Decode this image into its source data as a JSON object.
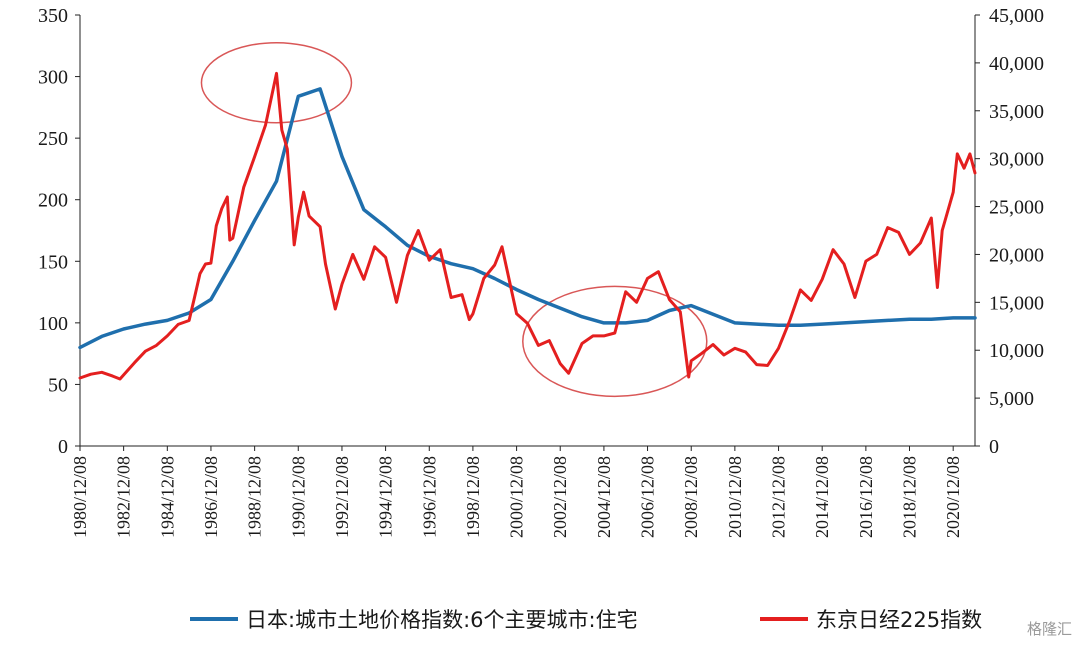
{
  "chart_data": {
    "type": "line",
    "title": "",
    "xlabel": "",
    "ylabel_left": "",
    "ylabel_right": "",
    "grid": false,
    "legend_position": "bottom",
    "xlim": [
      "1980/12/08",
      "2021/12/08"
    ],
    "x_ticks": [
      "1980/12/08",
      "1982/12/08",
      "1984/12/08",
      "1986/12/08",
      "1988/12/08",
      "1990/12/08",
      "1992/12/08",
      "1994/12/08",
      "1996/12/08",
      "1998/12/08",
      "2000/12/08",
      "2002/12/08",
      "2004/12/08",
      "2006/12/08",
      "2008/12/08",
      "2010/12/08",
      "2012/12/08",
      "2014/12/08",
      "2016/12/08",
      "2018/12/08",
      "2020/12/08"
    ],
    "y_left": {
      "min": 0,
      "max": 350,
      "ticks": [
        0,
        50,
        100,
        150,
        200,
        250,
        300,
        350
      ]
    },
    "y_right": {
      "min": 0,
      "max": 45000,
      "ticks": [
        "0",
        "5,000",
        "10,000",
        "15,000",
        "20,000",
        "25,000",
        "30,000",
        "35,000",
        "40,000",
        "45,000"
      ]
    },
    "series": [
      {
        "name": "日本:城市土地价格指数:6个主要城市:住宅",
        "axis": "left",
        "color": "#1f6fad",
        "x": [
          "1980/12/08",
          "1981/12/08",
          "1982/12/08",
          "1983/12/08",
          "1984/12/08",
          "1985/12/08",
          "1986/12/08",
          "1987/12/08",
          "1988/12/08",
          "1989/12/08",
          "1990/12/08",
          "1991/12/08",
          "1992/12/08",
          "1993/12/08",
          "1994/12/08",
          "1995/12/08",
          "1996/12/08",
          "1997/12/08",
          "1998/12/08",
          "1999/12/08",
          "2000/12/08",
          "2001/12/08",
          "2002/12/08",
          "2003/12/08",
          "2004/12/08",
          "2005/12/08",
          "2006/12/08",
          "2007/12/08",
          "2008/12/08",
          "2009/12/08",
          "2010/12/08",
          "2011/12/08",
          "2012/12/08",
          "2013/12/08",
          "2014/12/08",
          "2015/12/08",
          "2016/12/08",
          "2017/12/08",
          "2018/12/08",
          "2019/12/08",
          "2020/12/08",
          "2021/12/08"
        ],
        "values": [
          80,
          89,
          95,
          99,
          102,
          108,
          119,
          150,
          183,
          215,
          284,
          290,
          235,
          192,
          178,
          163,
          154,
          148,
          144,
          136,
          127,
          119,
          112,
          105,
          100,
          100,
          102,
          110,
          114,
          107,
          100,
          99,
          98,
          98,
          99,
          100,
          101,
          102,
          103,
          103,
          104,
          104
        ]
      },
      {
        "name": "东京日经225指数",
        "axis": "right",
        "color": "#e41f1f",
        "x": [
          "1980/12/08",
          "1981/06/08",
          "1981/12/08",
          "1982/06/08",
          "1982/10/08",
          "1983/06/08",
          "1983/12/08",
          "1984/06/08",
          "1984/12/08",
          "1985/06/08",
          "1985/12/08",
          "1986/03/08",
          "1986/06/08",
          "1986/09/08",
          "1986/12/08",
          "1987/03/08",
          "1987/06/08",
          "1987/09/08",
          "1987/10/20",
          "1987/12/08",
          "1988/06/08",
          "1988/12/08",
          "1989/06/08",
          "1989/12/08",
          "1990/03/08",
          "1990/06/08",
          "1990/10/01",
          "1990/12/08",
          "1991/03/08",
          "1991/06/08",
          "1991/12/08",
          "1992/03/08",
          "1992/08/18",
          "1992/12/08",
          "1993/06/08",
          "1993/12/08",
          "1994/06/08",
          "1994/12/08",
          "1995/06/08",
          "1995/12/08",
          "1996/06/08",
          "1996/12/08",
          "1997/06/08",
          "1997/12/08",
          "1998/06/08",
          "1998/10/08",
          "1998/12/08",
          "1999/06/08",
          "1999/12/08",
          "2000/04/08",
          "2000/12/08",
          "2001/06/08",
          "2001/12/08",
          "2002/06/08",
          "2002/12/08",
          "2003/04/28",
          "2003/12/08",
          "2004/06/08",
          "2004/12/08",
          "2005/06/08",
          "2005/12/08",
          "2006/06/08",
          "2006/12/08",
          "2007/06/08",
          "2007/12/08",
          "2008/06/08",
          "2008/10/27",
          "2008/12/08",
          "2009/06/08",
          "2009/12/08",
          "2010/06/08",
          "2010/12/08",
          "2011/06/08",
          "2011/12/08",
          "2012/06/08",
          "2012/12/08",
          "2013/06/08",
          "2013/12/08",
          "2014/06/08",
          "2014/12/08",
          "2015/06/08",
          "2015/12/08",
          "2016/06/08",
          "2016/12/08",
          "2017/06/08",
          "2017/12/08",
          "2018/06/08",
          "2018/12/08",
          "2019/06/08",
          "2019/12/08",
          "2020/03/19",
          "2020/06/08",
          "2020/12/08",
          "2021/02/15",
          "2021/06/08",
          "2021/09/14",
          "2021/12/08"
        ],
        "values": [
          7100,
          7500,
          7700,
          7300,
          7000,
          8700,
          9900,
          10500,
          11500,
          12700,
          13100,
          15500,
          18000,
          19000,
          19100,
          23000,
          24800,
          26000,
          21500,
          21700,
          27000,
          30200,
          33500,
          38900,
          33000,
          31000,
          21000,
          23900,
          26500,
          24000,
          22900,
          19000,
          14300,
          16900,
          20000,
          17400,
          20800,
          19700,
          15000,
          19900,
          22500,
          19400,
          20500,
          15500,
          15800,
          13200,
          13800,
          17500,
          18900,
          20800,
          13800,
          12800,
          10500,
          11000,
          8600,
          7600,
          10700,
          11500,
          11500,
          11800,
          16100,
          15000,
          17500,
          18200,
          15300,
          14000,
          7200,
          8900,
          9700,
          10600,
          9500,
          10200,
          9800,
          8500,
          8400,
          10200,
          13000,
          16300,
          15200,
          17400,
          20500,
          19000,
          15500,
          19300,
          20000,
          22800,
          22300,
          20000,
          21200,
          23800,
          16550,
          22500,
          26500,
          30500,
          29000,
          30500,
          28500
        ]
      }
    ],
    "annotations": [
      {
        "shape": "ellipse",
        "color": "#d95757",
        "x": "1989/12/08",
        "y_left": 295
      },
      {
        "shape": "ellipse",
        "color": "#d95757",
        "x": "2005/06/08",
        "y_left": 85
      }
    ]
  },
  "legend": {
    "items": [
      {
        "label": "日本:城市土地价格指数:6个主要城市:住宅",
        "color": "#1f6fad"
      },
      {
        "label": "东京日经225指数",
        "color": "#e41f1f"
      }
    ]
  },
  "watermark": {
    "text": "格隆汇"
  }
}
